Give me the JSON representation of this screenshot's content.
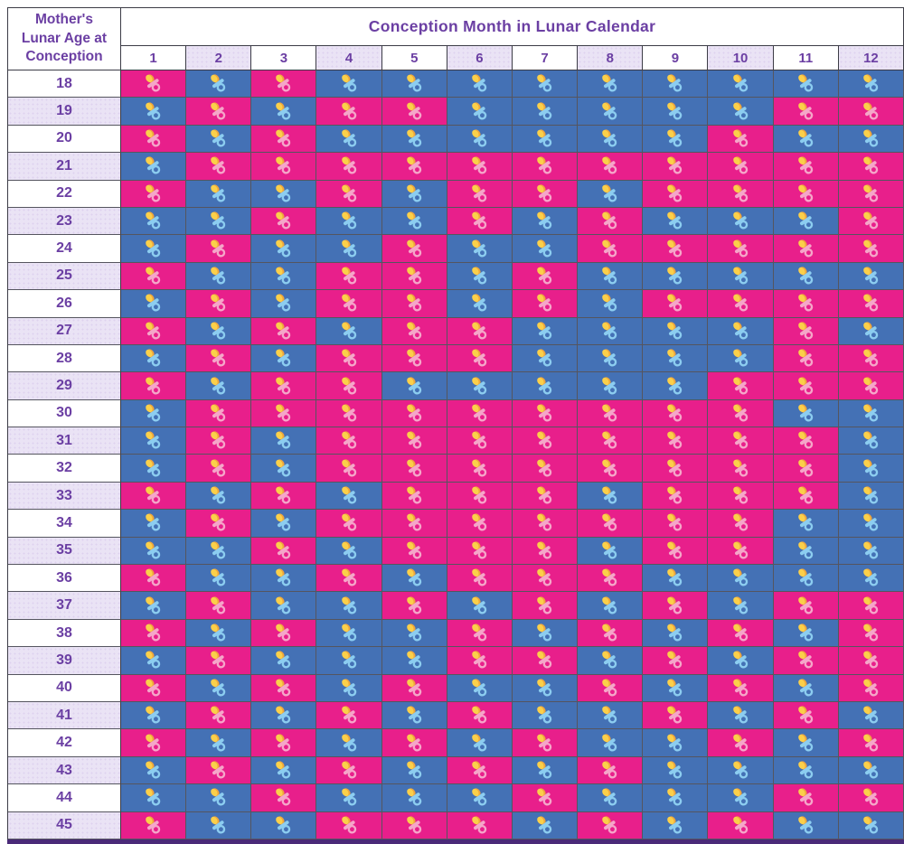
{
  "header": {
    "corner_label": "Mother's Lunar Age at Conception",
    "title": "Conception Month in Lunar Calendar",
    "months": [
      "1",
      "2",
      "3",
      "4",
      "5",
      "6",
      "7",
      "8",
      "9",
      "10",
      "11",
      "12"
    ]
  },
  "colors": {
    "girl_cell": "#e81f8b",
    "boy_cell": "#4471b5",
    "girl_pacifier": "#f5a6c9",
    "boy_pacifier": "#8ccdf0",
    "pacifier_bulb_light": "#fbd04a",
    "pacifier_bulb_dark": "#efa73d",
    "header_text": "#6b3fa3",
    "lavender_stripe": "#eae3f5",
    "bottom_bar": "#4a2a78"
  },
  "chart_data": {
    "type": "heatmap",
    "title": "Conception Month in Lunar Calendar",
    "xlabel": "Conception Month in Lunar Calendar",
    "ylabel": "Mother's Lunar Age at Conception",
    "x": [
      1,
      2,
      3,
      4,
      5,
      6,
      7,
      8,
      9,
      10,
      11,
      12
    ],
    "y": [
      18,
      19,
      20,
      21,
      22,
      23,
      24,
      25,
      26,
      27,
      28,
      29,
      30,
      31,
      32,
      33,
      34,
      35,
      36,
      37,
      38,
      39,
      40,
      41,
      42,
      43,
      44,
      45
    ],
    "legend": {
      "G": "girl (pink cell, pink pacifier)",
      "B": "boy (blue cell, blue pacifier)"
    },
    "rows": [
      {
        "age": "18",
        "pattern": "GBGBBBBBBBBB"
      },
      {
        "age": "19",
        "pattern": "BGBGGBBBBBGG"
      },
      {
        "age": "20",
        "pattern": "GBGBBBBBBGBB"
      },
      {
        "age": "21",
        "pattern": "BGGGGGGGGGGG"
      },
      {
        "age": "22",
        "pattern": "GBBGBGGBGGGG"
      },
      {
        "age": "23",
        "pattern": "BBGBBGBGBBBG"
      },
      {
        "age": "24",
        "pattern": "BGBBGBBGGGGG"
      },
      {
        "age": "25",
        "pattern": "GBBGGBGBBBBB"
      },
      {
        "age": "26",
        "pattern": "BGBGGBGBGGGG"
      },
      {
        "age": "27",
        "pattern": "GBGBGGBBBBGB"
      },
      {
        "age": "28",
        "pattern": "BGBGGGBBBBGG"
      },
      {
        "age": "29",
        "pattern": "GBGGBBBBBGGG"
      },
      {
        "age": "30",
        "pattern": "BGGGGGGGGGBB"
      },
      {
        "age": "31",
        "pattern": "BGBGGGGGGGGB"
      },
      {
        "age": "32",
        "pattern": "BGBGGGGGGGGB"
      },
      {
        "age": "33",
        "pattern": "GBGBGGGBGGGB"
      },
      {
        "age": "34",
        "pattern": "BGBGGGGGGGBB"
      },
      {
        "age": "35",
        "pattern": "BBGBGGGBGGBB"
      },
      {
        "age": "36",
        "pattern": "GBBGBGGGBBBB"
      },
      {
        "age": "37",
        "pattern": "BGBBGBGBGBGG"
      },
      {
        "age": "38",
        "pattern": "GBGBBGBGBGBG"
      },
      {
        "age": "39",
        "pattern": "BGBBBGGBGBGG"
      },
      {
        "age": "40",
        "pattern": "GBGBGBBGBGBG"
      },
      {
        "age": "41",
        "pattern": "BGBGBGBBGBGB"
      },
      {
        "age": "42",
        "pattern": "GBGBGBGBBGBG"
      },
      {
        "age": "43",
        "pattern": "BGBGBGBGBBBB"
      },
      {
        "age": "44",
        "pattern": "BBGBBBGBBBGG"
      },
      {
        "age": "45",
        "pattern": "GBBGGGBGBGBB"
      }
    ]
  }
}
